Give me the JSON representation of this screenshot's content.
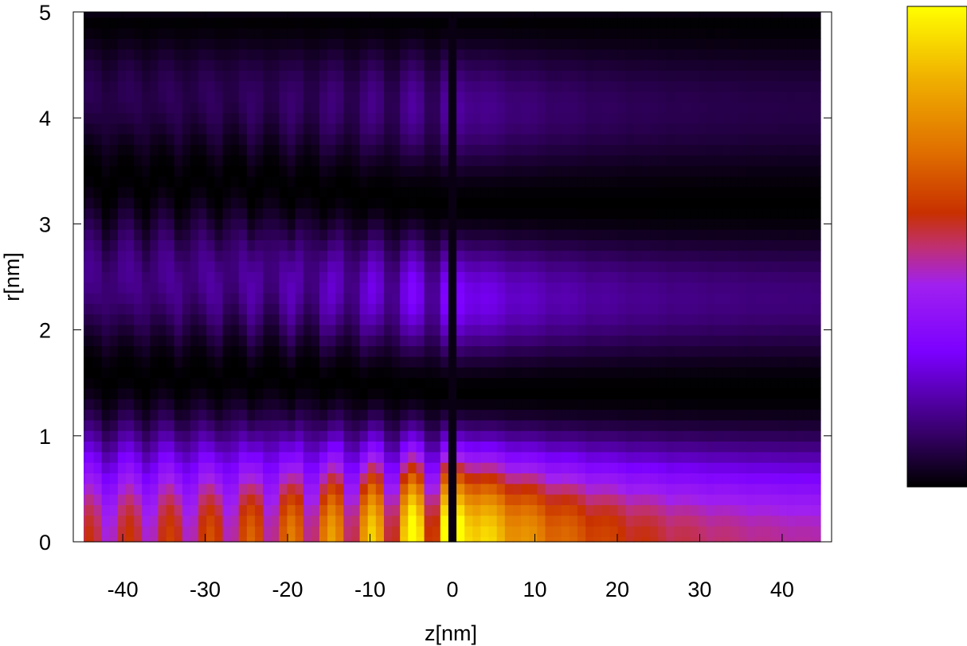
{
  "chart_data": {
    "type": "heatmap",
    "title": "",
    "xlabel": "z[nm]",
    "ylabel": "r[nm]",
    "xlim": [
      -46,
      46
    ],
    "ylim": [
      0,
      5
    ],
    "x_ticks": [
      -40,
      -30,
      -20,
      -10,
      0,
      10,
      20,
      30,
      40
    ],
    "x_tick_labels": [
      "-40",
      "-30",
      "-20",
      "-10",
      "0",
      "10",
      "20",
      "30",
      "40"
    ],
    "y_ticks": [
      0,
      1,
      2,
      3,
      4,
      5
    ],
    "y_tick_labels": [
      "0",
      "1",
      "2",
      "3",
      "4",
      "5"
    ],
    "colormap": [
      "#000000",
      "#3a0070",
      "#7b00ff",
      "#a020f0",
      "#c03070",
      "#c83000",
      "#e07000",
      "#f0b000",
      "#ffff00"
    ],
    "colorbar": {
      "present": true,
      "tick_labels": []
    },
    "grid": false,
    "legend": "none",
    "data_description_fields": {
      "z_samples": 93,
      "r_samples": 51
    }
  }
}
